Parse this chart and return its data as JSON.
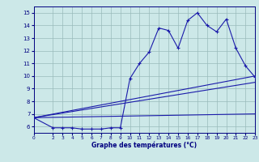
{
  "xlabel": "Graphe des températures (°C)",
  "bg_color": "#cce8e8",
  "line_color": "#1a1aaa",
  "grid_color": "#99bbbb",
  "xlim": [
    0,
    23
  ],
  "ylim": [
    5.5,
    15.5
  ],
  "xticks": [
    0,
    2,
    3,
    4,
    5,
    6,
    7,
    8,
    9,
    10,
    11,
    12,
    13,
    14,
    15,
    16,
    17,
    18,
    19,
    20,
    21,
    22,
    23
  ],
  "yticks": [
    6,
    7,
    8,
    9,
    10,
    11,
    12,
    13,
    14,
    15
  ],
  "series_current": {
    "x": [
      0,
      2,
      3,
      4,
      5,
      6,
      7,
      8,
      9,
      10,
      11,
      12,
      13,
      14,
      15,
      16,
      17,
      18,
      19,
      20,
      21,
      22,
      23
    ],
    "y": [
      6.7,
      5.9,
      5.9,
      5.9,
      5.8,
      5.8,
      5.8,
      5.9,
      5.9,
      9.8,
      11.0,
      11.9,
      13.8,
      13.6,
      12.2,
      14.4,
      15.0,
      14.0,
      13.5,
      14.5,
      12.2,
      10.8,
      9.9
    ]
  },
  "series_line1": {
    "x": [
      0,
      23
    ],
    "y": [
      6.7,
      10.0
    ]
  },
  "series_line2": {
    "x": [
      0,
      23
    ],
    "y": [
      6.7,
      9.5
    ]
  },
  "series_line3": {
    "x": [
      0,
      23
    ],
    "y": [
      6.7,
      7.0
    ]
  }
}
